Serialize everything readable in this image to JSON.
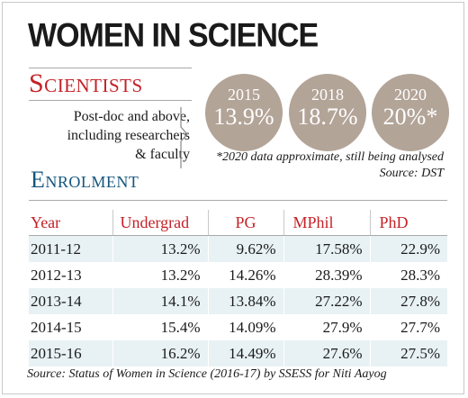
{
  "title": "WOMEN IN SCIENCE",
  "scientists": {
    "heading": "Scientists",
    "description_lines": [
      "Post-doc and above,",
      "including researchers",
      "& faculty"
    ],
    "circles": [
      {
        "year": "2015",
        "value": "13.9%"
      },
      {
        "year": "2018",
        "value": "18.7%"
      },
      {
        "year": "2020",
        "value": "20%*"
      }
    ],
    "circle_color": "#b3a498",
    "note_lines": [
      "*2020 data approximate, still being analysed",
      "Source: DST"
    ]
  },
  "enrolment": {
    "heading": "Enrolment",
    "columns": [
      "Year",
      "Undergrad",
      "PG",
      "MPhil",
      "PhD"
    ],
    "rows": [
      [
        "2011-12",
        "13.2%",
        "9.62%",
        "17.58%",
        "22.9%"
      ],
      [
        "2012-13",
        "13.2%",
        "14.26%",
        "28.39%",
        "28.3%"
      ],
      [
        "2013-14",
        "14.1%",
        "13.84%",
        "27.22%",
        "27.8%"
      ],
      [
        "2014-15",
        "15.4%",
        "14.09%",
        "27.9%",
        "27.7%"
      ],
      [
        "2015-16",
        "16.2%",
        "14.49%",
        "27.6%",
        "27.5%"
      ]
    ]
  },
  "source": "Source: Status of Women in Science (2016-17) by SSESS for Niti Aayog",
  "colors": {
    "accent_red": "#c42127",
    "accent_blue": "#14567e",
    "row_shade": "#e8f2f4"
  }
}
